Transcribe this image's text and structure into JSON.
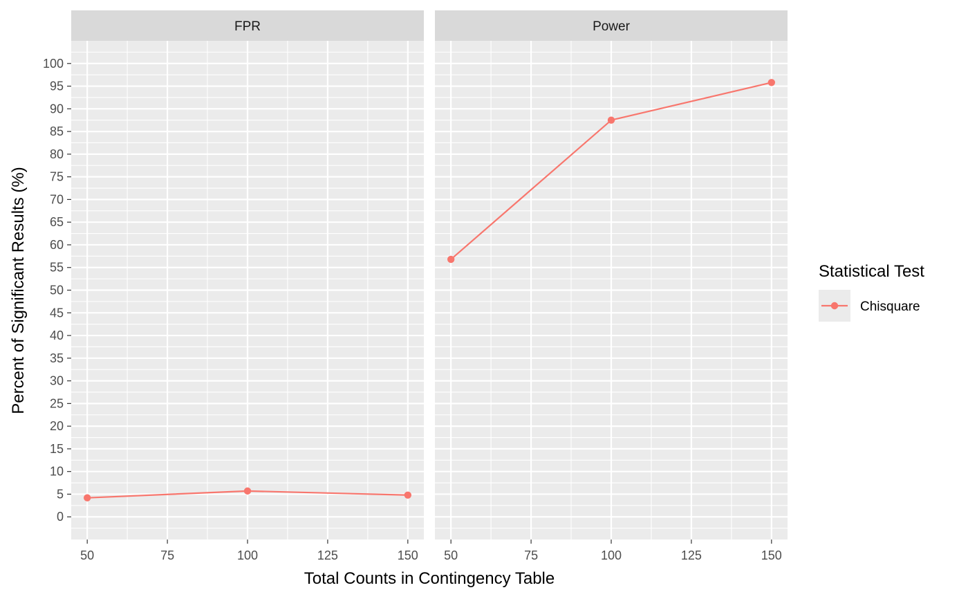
{
  "chart_data": {
    "type": "line",
    "facets": [
      {
        "label": "FPR",
        "series": [
          {
            "name": "Chisquare",
            "x": [
              50,
              100,
              150
            ],
            "y": [
              4.2,
              5.7,
              4.8
            ]
          }
        ]
      },
      {
        "label": "Power",
        "series": [
          {
            "name": "Chisquare",
            "x": [
              50,
              100,
              150
            ],
            "y": [
              56.8,
              87.5,
              95.8
            ]
          }
        ]
      }
    ],
    "xlabel": "Total Counts in Contingency Table",
    "ylabel": "Percent of Significant Results (%)",
    "xlim": [
      45,
      155
    ],
    "ylim": [
      -5,
      105
    ],
    "x_ticks": [
      50,
      75,
      100,
      125,
      150
    ],
    "y_ticks": [
      0,
      5,
      10,
      15,
      20,
      25,
      30,
      35,
      40,
      45,
      50,
      55,
      60,
      65,
      70,
      75,
      80,
      85,
      90,
      95,
      100
    ],
    "grid": true,
    "legend": {
      "title": "Statistical Test",
      "entries": [
        "Chisquare"
      ],
      "position": "right"
    },
    "colors": {
      "Chisquare": "#F8766D",
      "panel_background": "#EBEBEB",
      "strip_background": "#D9D9D9",
      "grid": "#FFFFFF"
    }
  }
}
